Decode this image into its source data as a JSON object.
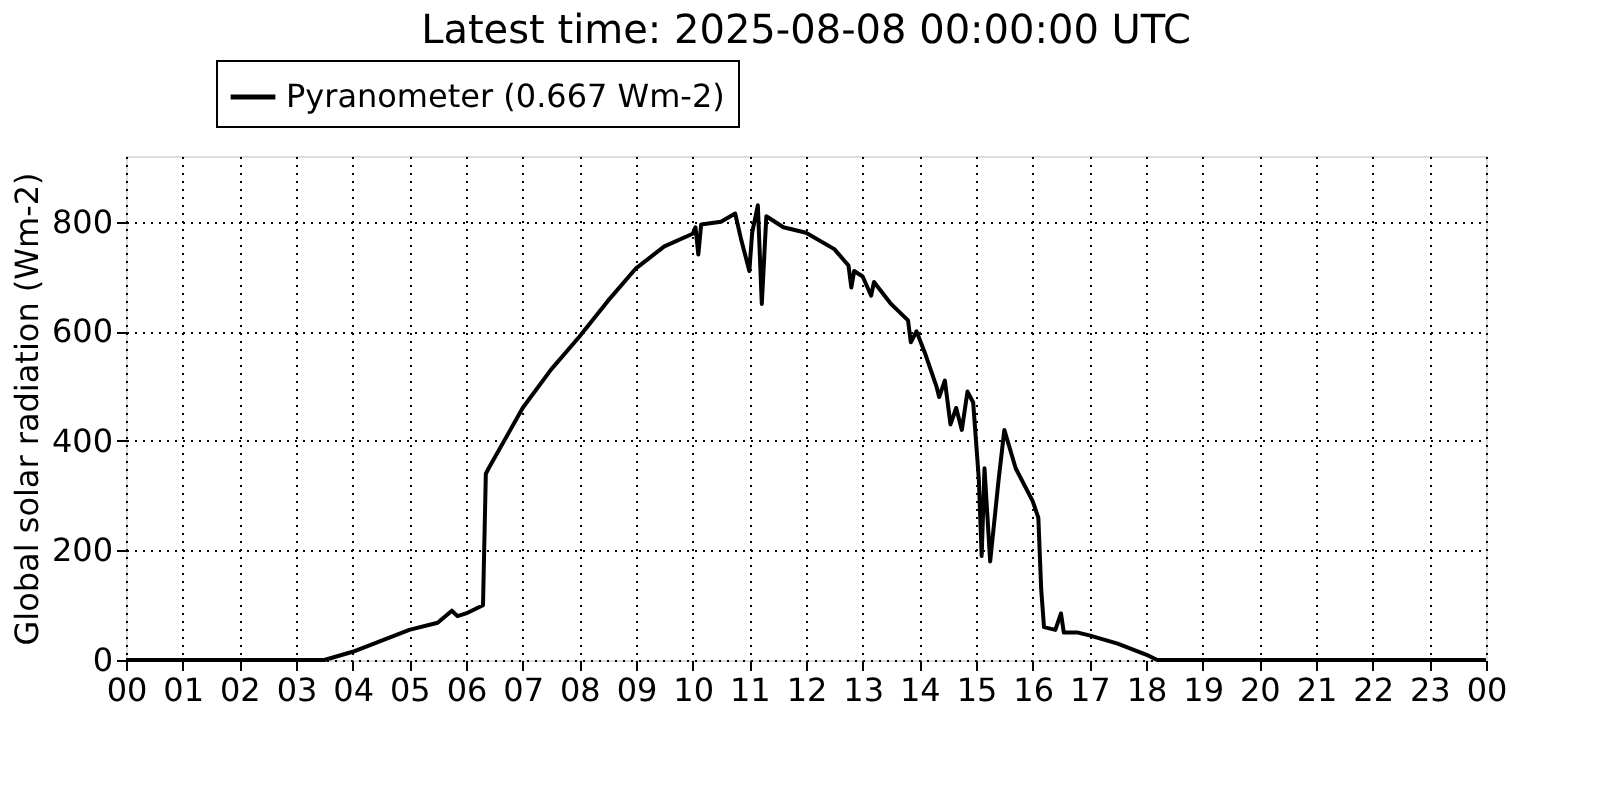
{
  "chart_data": {
    "type": "line",
    "title": "Latest time: 2025-08-08 00:00:00 UTC",
    "ylabel": "Global solar radiation (Wm-2)",
    "x": [
      0,
      3.5,
      4.0,
      4.5,
      5.0,
      5.5,
      5.75,
      5.85,
      6.0,
      6.2,
      6.3,
      6.35,
      6.4,
      7.0,
      7.5,
      8.0,
      8.5,
      9.0,
      9.5,
      10.0,
      10.05,
      10.1,
      10.15,
      10.5,
      10.75,
      10.85,
      11.0,
      11.05,
      11.15,
      11.22,
      11.3,
      11.6,
      12.0,
      12.5,
      12.75,
      12.8,
      12.85,
      13.0,
      13.15,
      13.2,
      13.5,
      13.8,
      13.85,
      13.95,
      14.1,
      14.3,
      14.35,
      14.45,
      14.55,
      14.65,
      14.75,
      14.85,
      14.95,
      15.05,
      15.1,
      15.15,
      15.25,
      15.4,
      15.5,
      15.7,
      16.0,
      16.1,
      16.15,
      16.2,
      16.4,
      16.5,
      16.55,
      16.8,
      17.0,
      17.5,
      18.0,
      18.2,
      24
    ],
    "series": [
      {
        "name": "Pyranometer (0.667 Wm-2)",
        "color": "#000000",
        "values": [
          0,
          0,
          15,
          35,
          55,
          68,
          90,
          80,
          85,
          95,
          100,
          340,
          350,
          460,
          530,
          590,
          655,
          715,
          755,
          778,
          790,
          740,
          795,
          800,
          815,
          770,
          710,
          780,
          830,
          650,
          810,
          790,
          780,
          750,
          720,
          680,
          710,
          700,
          665,
          690,
          650,
          620,
          580,
          600,
          560,
          500,
          480,
          510,
          430,
          460,
          420,
          490,
          470,
          330,
          190,
          350,
          180,
          330,
          420,
          350,
          290,
          260,
          130,
          60,
          55,
          85,
          50,
          50,
          45,
          30,
          10,
          0,
          0
        ]
      }
    ],
    "xlim": [
      0,
      24
    ],
    "ylim": [
      0,
      920
    ],
    "xticks": [
      {
        "value": 0,
        "label": "00"
      },
      {
        "value": 1,
        "label": "01"
      },
      {
        "value": 2,
        "label": "02"
      },
      {
        "value": 3,
        "label": "03"
      },
      {
        "value": 4,
        "label": "04"
      },
      {
        "value": 5,
        "label": "05"
      },
      {
        "value": 6,
        "label": "06"
      },
      {
        "value": 7,
        "label": "07"
      },
      {
        "value": 8,
        "label": "08"
      },
      {
        "value": 9,
        "label": "09"
      },
      {
        "value": 10,
        "label": "10"
      },
      {
        "value": 11,
        "label": "11"
      },
      {
        "value": 12,
        "label": "12"
      },
      {
        "value": 13,
        "label": "13"
      },
      {
        "value": 14,
        "label": "14"
      },
      {
        "value": 15,
        "label": "15"
      },
      {
        "value": 16,
        "label": "16"
      },
      {
        "value": 17,
        "label": "17"
      },
      {
        "value": 18,
        "label": "18"
      },
      {
        "value": 19,
        "label": "19"
      },
      {
        "value": 20,
        "label": "20"
      },
      {
        "value": 21,
        "label": "21"
      },
      {
        "value": 22,
        "label": "22"
      },
      {
        "value": 23,
        "label": "23"
      },
      {
        "value": 24,
        "label": "00"
      }
    ],
    "yticks": [
      0,
      200,
      400,
      600,
      800
    ],
    "grid": true,
    "legend": "top",
    "marker": "none",
    "line_style": "solid"
  }
}
